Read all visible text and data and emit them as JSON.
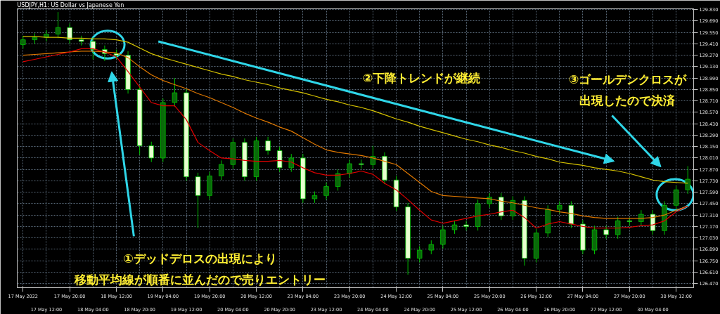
{
  "chart_data": {
    "type": "candlestick",
    "title": "USDJPY,H1: US Dollar vs Japanese Yen",
    "categories": [
      "17 May 2022",
      null,
      "17 May 12:00",
      null,
      "17 May 20:00",
      null,
      "18 May 04:00",
      null,
      "18 May 12:00",
      null,
      "18 May 20:00",
      null,
      "19 May 04:00",
      null,
      "19 May 12:00",
      null,
      "19 May 20:00",
      null,
      "20 May 04:00",
      null,
      "20 May 12:00",
      null,
      "20 May 20:00",
      null,
      "23 May 04:00",
      null,
      "23 May 12:00",
      null,
      "23 May 20:00",
      null,
      "24 May 04:00",
      null,
      "24 May 12:00",
      null,
      "24 May 20:00",
      null,
      "25 May 04:00",
      null,
      "25 May 12:00",
      null,
      "25 May 20:00",
      null,
      "26 May 04:00",
      null,
      "26 May 12:00",
      null,
      "26 May 20:00",
      null,
      "27 May 04:00",
      null,
      "27 May 12:00",
      null,
      "27 May 20:00",
      null,
      "30 May 04:00",
      null,
      "30 May 12:00",
      null
    ],
    "ohlc": [
      [
        129.4,
        129.51,
        129.35,
        129.46
      ],
      [
        129.46,
        129.54,
        129.41,
        129.49
      ],
      [
        129.49,
        129.58,
        129.44,
        129.53
      ],
      [
        129.53,
        129.8,
        129.48,
        129.61
      ],
      [
        129.61,
        129.66,
        129.41,
        129.46
      ],
      [
        129.46,
        129.51,
        129.39,
        129.44
      ],
      [
        129.44,
        129.49,
        129.22,
        129.34
      ],
      [
        129.34,
        129.39,
        129.2,
        129.29
      ],
      [
        129.29,
        129.34,
        129.22,
        129.27
      ],
      [
        129.27,
        129.32,
        128.8,
        128.85
      ],
      [
        128.85,
        128.9,
        128.05,
        128.16
      ],
      [
        128.16,
        128.21,
        127.96,
        128.01
      ],
      [
        128.01,
        128.74,
        127.96,
        128.69
      ],
      [
        128.69,
        128.99,
        128.64,
        128.81
      ],
      [
        128.81,
        128.86,
        127.73,
        127.78
      ],
      [
        127.78,
        127.83,
        127.15,
        127.55
      ],
      [
        127.55,
        127.84,
        127.5,
        127.79
      ],
      [
        127.79,
        127.98,
        127.74,
        127.93
      ],
      [
        127.93,
        128.25,
        127.88,
        128.2
      ],
      [
        128.2,
        128.25,
        127.73,
        127.78
      ],
      [
        127.78,
        128.27,
        127.73,
        128.22
      ],
      [
        128.22,
        128.27,
        128.05,
        128.1
      ],
      [
        128.1,
        128.15,
        127.84,
        127.89
      ],
      [
        127.89,
        128.06,
        127.84,
        128.01
      ],
      [
        128.01,
        128.06,
        127.46,
        127.51
      ],
      [
        127.51,
        127.6,
        127.46,
        127.55
      ],
      [
        127.55,
        127.71,
        127.5,
        127.66
      ],
      [
        127.66,
        127.87,
        127.61,
        127.82
      ],
      [
        127.82,
        127.99,
        127.77,
        127.94
      ],
      [
        127.94,
        127.99,
        127.88,
        127.93
      ],
      [
        127.93,
        128.16,
        127.88,
        128.03
      ],
      [
        128.03,
        128.08,
        127.69,
        127.74
      ],
      [
        127.74,
        127.79,
        127.36,
        127.41
      ],
      [
        127.41,
        127.46,
        126.58,
        126.78
      ],
      [
        126.78,
        126.93,
        126.73,
        126.88
      ],
      [
        126.88,
        127.0,
        126.83,
        126.95
      ],
      [
        126.95,
        127.18,
        126.9,
        127.13
      ],
      [
        127.13,
        127.24,
        127.08,
        127.19
      ],
      [
        127.19,
        127.24,
        127.12,
        127.17
      ],
      [
        127.17,
        127.5,
        127.12,
        127.45
      ],
      [
        127.45,
        127.58,
        127.4,
        127.53
      ],
      [
        127.53,
        127.58,
        127.25,
        127.3
      ],
      [
        127.3,
        127.54,
        127.25,
        127.49
      ],
      [
        127.49,
        127.54,
        126.69,
        126.78
      ],
      [
        126.78,
        127.14,
        126.73,
        127.09
      ],
      [
        127.09,
        127.43,
        127.04,
        127.38
      ],
      [
        127.38,
        127.48,
        127.33,
        127.43
      ],
      [
        127.43,
        127.48,
        127.15,
        127.2
      ],
      [
        127.2,
        127.25,
        126.83,
        126.88
      ],
      [
        126.88,
        127.18,
        126.83,
        127.13
      ],
      [
        127.13,
        127.18,
        127.02,
        127.07
      ],
      [
        127.07,
        127.29,
        127.02,
        127.24
      ],
      [
        127.24,
        127.28,
        127.18,
        127.23
      ],
      [
        127.23,
        127.37,
        127.18,
        127.32
      ],
      [
        127.32,
        127.37,
        127.07,
        127.12
      ],
      [
        127.12,
        127.48,
        127.07,
        127.43
      ],
      [
        127.43,
        127.67,
        127.38,
        127.62
      ],
      [
        127.62,
        127.91,
        127.57,
        127.75
      ]
    ],
    "series": [
      {
        "type": "line",
        "color": "#d4c000",
        "values": [
          129.5,
          129.5,
          129.49,
          129.49,
          129.48,
          129.48,
          129.47,
          129.47,
          129.46,
          129.43,
          129.36,
          129.29,
          129.24,
          129.2,
          129.16,
          129.12,
          129.08,
          129.04,
          129.01,
          128.97,
          128.94,
          128.91,
          128.87,
          128.84,
          128.81,
          128.77,
          128.73,
          128.7,
          128.66,
          128.63,
          128.59,
          128.54,
          128.49,
          128.45,
          128.4,
          128.36,
          128.32,
          128.28,
          128.24,
          128.21,
          128.17,
          128.14,
          128.1,
          128.07,
          128.03,
          128.0,
          127.96,
          127.94,
          127.92,
          127.89,
          127.87,
          127.85,
          127.82,
          127.78,
          127.74,
          127.72,
          127.71,
          127.7
        ]
      },
      {
        "type": "line",
        "color": "#e07800",
        "values": [
          129.27,
          129.28,
          129.29,
          129.3,
          129.31,
          129.32,
          129.32,
          129.31,
          129.3,
          129.24,
          129.13,
          129.03,
          128.96,
          128.91,
          128.86,
          128.8,
          128.75,
          128.69,
          128.63,
          128.56,
          128.5,
          128.45,
          128.39,
          128.34,
          128.26,
          128.18,
          128.11,
          128.08,
          128.06,
          128.04,
          128.01,
          127.97,
          127.93,
          127.82,
          127.71,
          127.6,
          127.55,
          127.54,
          127.53,
          127.52,
          127.51,
          127.48,
          127.46,
          127.43,
          127.4,
          127.38,
          127.35,
          127.33,
          127.3,
          127.28,
          127.27,
          127.27,
          127.27,
          127.27,
          127.28,
          127.31,
          127.37,
          127.42
        ]
      },
      {
        "type": "line",
        "color": "#e00000",
        "values": [
          129.19,
          129.22,
          129.25,
          129.28,
          129.31,
          129.35,
          129.35,
          129.31,
          129.25,
          129.07,
          128.88,
          128.69,
          128.65,
          128.65,
          128.48,
          128.2,
          128.1,
          128.01,
          128.0,
          127.98,
          127.97,
          127.97,
          127.98,
          127.96,
          127.89,
          127.83,
          127.8,
          127.8,
          127.82,
          127.85,
          127.81,
          127.7,
          127.62,
          127.5,
          127.37,
          127.25,
          127.21,
          127.24,
          127.27,
          127.3,
          127.32,
          127.35,
          127.37,
          127.28,
          127.15,
          127.2,
          127.23,
          127.2,
          127.17,
          127.15,
          127.15,
          127.15,
          127.16,
          127.18,
          127.19,
          127.24,
          127.35,
          127.42
        ]
      }
    ],
    "ylim": [
      126.42,
      129.84
    ],
    "yticks": [
      {
        "value": 129.83,
        "label": "129.830"
      },
      {
        "value": 129.69,
        "label": "129.690"
      },
      {
        "value": 129.55,
        "label": "129.550"
      },
      {
        "value": 129.41,
        "label": "129.410"
      },
      {
        "value": 129.27,
        "label": "129.270"
      },
      {
        "value": 129.13,
        "label": "129.130"
      },
      {
        "value": 128.99,
        "label": "128.990"
      },
      {
        "value": 128.85,
        "label": "128.850"
      },
      {
        "value": 128.71,
        "label": "128.710"
      },
      {
        "value": 128.57,
        "label": "128.570"
      },
      {
        "value": 128.43,
        "label": "128.430"
      },
      {
        "value": 128.29,
        "label": "128.290"
      },
      {
        "value": 128.15,
        "label": "128.150"
      },
      {
        "value": 128.01,
        "label": "128.010"
      },
      {
        "value": 127.87,
        "label": "127.870"
      },
      {
        "value": 127.73,
        "label": "127.730"
      },
      {
        "value": 127.59,
        "label": "127.590"
      },
      {
        "value": 127.45,
        "label": "127.450"
      },
      {
        "value": 127.31,
        "label": "127.310"
      },
      {
        "value": 127.17,
        "label": "127.170"
      },
      {
        "value": 127.03,
        "label": "127.030"
      },
      {
        "value": 126.89,
        "label": "126.890"
      },
      {
        "value": 126.75,
        "label": "126.750"
      },
      {
        "value": 126.61,
        "label": "126.610"
      },
      {
        "value": 126.47,
        "label": "126.470"
      }
    ],
    "grid": true,
    "annotations": [
      "①デッドデロスの出現により移動平均線が順番に並んだので売りエントリー",
      "②下降トレンドが継続",
      "③ゴールデンクロスが出現したので決済"
    ]
  }
}
